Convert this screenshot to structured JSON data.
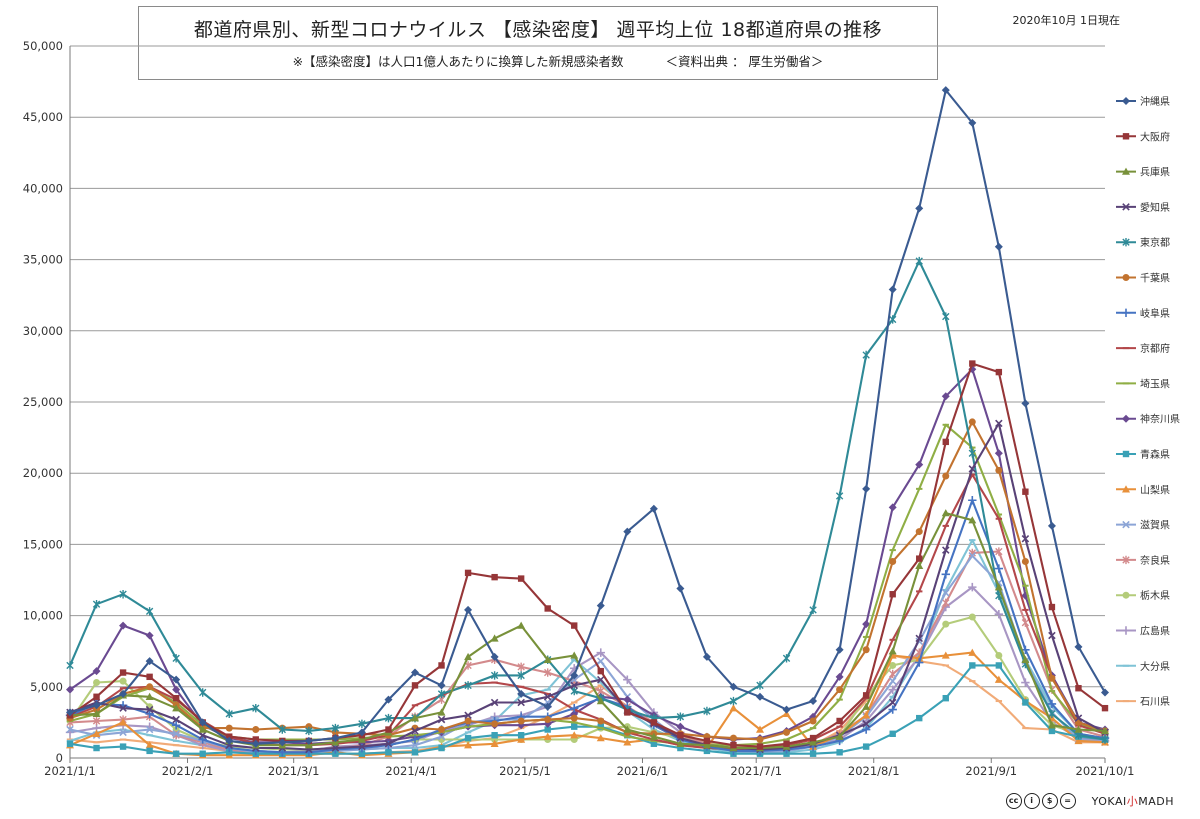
{
  "header": {
    "title": "都道府県別、新型コロナウイルス 【感染密度】 週平均上位 18都道府県の推移",
    "subtitle_left": "※【感染密度】は人口1億人あたりに換算した新規感染者数",
    "subtitle_right": "＜資料出典 ： 厚生労働省＞",
    "as_of": "2020年10月 1日現在"
  },
  "footer": {
    "license_icons": [
      "cc",
      "by",
      "nc",
      "nd"
    ],
    "brand_prefix": "YOKAI",
    "brand_mid": "小",
    "brand_suffix": "MADH"
  },
  "chart_data": {
    "type": "line",
    "title": "都道府県別、新型コロナウイルス 【感染密度】 週平均上位 18都道府県の推移",
    "xlabel": "",
    "ylabel": "",
    "ylim": [
      0,
      50000
    ],
    "yticks": [
      0,
      5000,
      10000,
      15000,
      20000,
      25000,
      30000,
      35000,
      40000,
      45000,
      50000
    ],
    "ytick_labels": [
      "0",
      "5,000",
      "10,000",
      "15,000",
      "20,000",
      "25,000",
      "30,000",
      "35,000",
      "40,000",
      "45,000",
      "50,000"
    ],
    "x_ticks": [
      {
        "date": "2021-01-01",
        "label": "2021/1/1"
      },
      {
        "date": "2021-02-01",
        "label": "2021/2/1"
      },
      {
        "date": "2021-03-01",
        "label": "2021/3/1"
      },
      {
        "date": "2021-04-01",
        "label": "2021/4/1"
      },
      {
        "date": "2021-05-01",
        "label": "2021/5/1"
      },
      {
        "date": "2021-06-01",
        "label": "2021/6/1"
      },
      {
        "date": "2021-07-01",
        "label": "2021/7/1"
      },
      {
        "date": "2021-08-01",
        "label": "2021/8/1"
      },
      {
        "date": "2021-09-01",
        "label": "2021/9/1"
      },
      {
        "date": "2021-10-01",
        "label": "2021/10/1"
      }
    ],
    "xlim": [
      "2021-01-01",
      "2021-10-01"
    ],
    "x": [
      "2021-01-01",
      "2021-01-08",
      "2021-01-15",
      "2021-01-22",
      "2021-01-29",
      "2021-02-05",
      "2021-02-12",
      "2021-02-19",
      "2021-02-26",
      "2021-03-05",
      "2021-03-12",
      "2021-03-19",
      "2021-03-26",
      "2021-04-02",
      "2021-04-09",
      "2021-04-16",
      "2021-04-23",
      "2021-04-30",
      "2021-05-07",
      "2021-05-14",
      "2021-05-21",
      "2021-05-28",
      "2021-06-04",
      "2021-06-11",
      "2021-06-18",
      "2021-06-25",
      "2021-07-02",
      "2021-07-09",
      "2021-07-16",
      "2021-07-23",
      "2021-07-30",
      "2021-08-06",
      "2021-08-13",
      "2021-08-20",
      "2021-08-27",
      "2021-09-03",
      "2021-09-10",
      "2021-09-17",
      "2021-09-24",
      "2021-10-01"
    ],
    "grid": "horizontal",
    "legend_position": "right",
    "series": [
      {
        "name": "沖縄県",
        "color": "#3a5b91",
        "marker": "diamond",
        "values": [
          3200,
          3700,
          4500,
          6800,
          5500,
          2500,
          1200,
          1000,
          1100,
          1200,
          1400,
          1800,
          4100,
          6000,
          5100,
          10400,
          7100,
          4500,
          3600,
          5800,
          10700,
          15900,
          17500,
          11900,
          7100,
          5000,
          4300,
          3400,
          4000,
          7600,
          18900,
          32900,
          38600,
          46900,
          44600,
          35900,
          24900,
          16300,
          7800,
          4600
        ]
      },
      {
        "name": "大阪府",
        "color": "#963638",
        "marker": "square",
        "values": [
          3000,
          4300,
          6000,
          5700,
          4200,
          2500,
          1500,
          1300,
          1200,
          1200,
          1400,
          1600,
          2000,
          5100,
          6500,
          13000,
          12700,
          12600,
          10500,
          9300,
          6100,
          3200,
          2500,
          1600,
          1200,
          900,
          800,
          1000,
          1400,
          2600,
          4400,
          11500,
          14000,
          22200,
          27700,
          27100,
          18700,
          10600,
          4900,
          3500
        ]
      },
      {
        "name": "兵庫県",
        "color": "#78913a",
        "marker": "triangle",
        "values": [
          3000,
          3100,
          4400,
          4300,
          3500,
          2000,
          1200,
          900,
          900,
          900,
          1100,
          1300,
          1800,
          2800,
          3200,
          7100,
          8400,
          9300,
          6900,
          7200,
          4000,
          2000,
          1500,
          1000,
          900,
          700,
          700,
          800,
          1100,
          1500,
          3600,
          7500,
          13500,
          17200,
          16700,
          12000,
          6900,
          2300,
          2000,
          1900
        ]
      },
      {
        "name": "愛知県",
        "color": "#594277",
        "marker": "x",
        "values": [
          3200,
          3900,
          3500,
          3400,
          2700,
          1600,
          900,
          700,
          700,
          600,
          700,
          800,
          1000,
          1900,
          2700,
          3000,
          3900,
          3900,
          4300,
          5100,
          5500,
          3300,
          2400,
          1400,
          900,
          700,
          600,
          700,
          1000,
          1600,
          2400,
          3900,
          8400,
          14600,
          20300,
          23500,
          15400,
          8600,
          2800,
          1800
        ]
      },
      {
        "name": "東京都",
        "color": "#2f8a97",
        "marker": "star",
        "values": [
          6500,
          10800,
          11500,
          10300,
          7000,
          4600,
          3100,
          3500,
          2000,
          1900,
          2100,
          2400,
          2800,
          2800,
          4500,
          5100,
          5800,
          5800,
          6900,
          4700,
          4200,
          3400,
          2800,
          2900,
          3300,
          4000,
          5100,
          7000,
          10400,
          18400,
          28300,
          30800,
          34900,
          31000,
          21400,
          11400,
          6600,
          3100,
          1600,
          1300
        ]
      },
      {
        "name": "千葉県",
        "color": "#c2732f",
        "marker": "circle",
        "values": [
          2800,
          3400,
          4500,
          5000,
          3700,
          2100,
          2100,
          2000,
          2100,
          2200,
          1800,
          1700,
          1600,
          2100,
          2000,
          2600,
          2400,
          2600,
          2700,
          2800,
          2600,
          1800,
          1700,
          1700,
          1500,
          1400,
          1300,
          1800,
          2600,
          4800,
          7600,
          13800,
          15900,
          19800,
          23600,
          20200,
          13800,
          5600,
          2500,
          1900
        ]
      },
      {
        "name": "岐阜県",
        "color": "#4573c2",
        "marker": "plus",
        "values": [
          3000,
          3800,
          3700,
          3100,
          2300,
          1300,
          700,
          500,
          400,
          400,
          600,
          700,
          900,
          1300,
          2000,
          2500,
          2600,
          2900,
          2900,
          3500,
          4200,
          3600,
          2300,
          1300,
          800,
          500,
          500,
          600,
          800,
          1200,
          2000,
          3400,
          6700,
          12900,
          18100,
          13300,
          7600,
          3800,
          1700,
          1400
        ]
      },
      {
        "name": "京都府",
        "color": "#b3474a",
        "marker": "line",
        "values": [
          2900,
          3600,
          4900,
          5000,
          4100,
          2600,
          1500,
          1000,
          900,
          900,
          1000,
          1200,
          1600,
          3700,
          4400,
          5200,
          5300,
          5000,
          4500,
          3400,
          2700,
          1800,
          1300,
          900,
          700,
          600,
          700,
          900,
          1300,
          2200,
          4200,
          8300,
          11700,
          16300,
          19900,
          16800,
          10400,
          5700,
          2300,
          1700
        ]
      },
      {
        "name": "埼玉県",
        "color": "#8fae45",
        "marker": "line",
        "values": [
          2600,
          3100,
          4300,
          4900,
          3900,
          2300,
          1500,
          1300,
          1300,
          1300,
          1300,
          1400,
          1500,
          1600,
          1800,
          2200,
          2400,
          2600,
          2700,
          2500,
          2100,
          1500,
          1200,
          1000,
          900,
          900,
          1000,
          1300,
          2100,
          4100,
          8500,
          14600,
          18900,
          23400,
          21800,
          17100,
          12100,
          4700,
          2400,
          1800
        ]
      },
      {
        "name": "神奈川県",
        "color": "#6a4a91",
        "marker": "diamond",
        "values": [
          4800,
          6100,
          9300,
          8600,
          4800,
          2300,
          1400,
          1100,
          1100,
          1000,
          1100,
          1100,
          1200,
          1500,
          1800,
          2200,
          2300,
          2300,
          2400,
          3100,
          4300,
          4100,
          3000,
          2200,
          1500,
          1300,
          1400,
          1900,
          2900,
          5700,
          9400,
          17600,
          20600,
          25400,
          27300,
          21400,
          11400,
          5800,
          2500,
          2000
        ]
      },
      {
        "name": "青森県",
        "color": "#3aa1b6",
        "marker": "square",
        "values": [
          1000,
          700,
          800,
          500,
          300,
          300,
          400,
          300,
          300,
          300,
          300,
          300,
          400,
          400,
          700,
          1400,
          1600,
          1600,
          2000,
          2200,
          2200,
          1600,
          1000,
          700,
          500,
          300,
          300,
          300,
          300,
          400,
          800,
          1700,
          2800,
          4200,
          6500,
          6500,
          3900,
          1900,
          1500,
          1300
        ]
      },
      {
        "name": "山梨県",
        "color": "#e8903a",
        "marker": "triangle",
        "values": [
          900,
          1700,
          2500,
          900,
          300,
          200,
          200,
          200,
          200,
          200,
          400,
          200,
          300,
          400,
          800,
          900,
          1000,
          1300,
          1500,
          1600,
          1400,
          1100,
          1300,
          900,
          700,
          3500,
          2000,
          3100,
          800,
          1600,
          3000,
          7200,
          7000,
          7200,
          7400,
          5500,
          4000,
          2800,
          1200,
          1100
        ]
      },
      {
        "name": "滋賀県",
        "color": "#8ca5d6",
        "marker": "x",
        "values": [
          2000,
          1600,
          1800,
          2000,
          1700,
          1200,
          700,
          400,
          300,
          300,
          500,
          600,
          700,
          900,
          1500,
          2500,
          2700,
          2700,
          3900,
          5500,
          6800,
          4300,
          2700,
          1300,
          800,
          500,
          400,
          500,
          800,
          1500,
          2900,
          5400,
          8200,
          11600,
          14200,
          12300,
          6800,
          3200,
          1300,
          1100
        ]
      },
      {
        "name": "奈良県",
        "color": "#d38a8c",
        "marker": "star",
        "values": [
          2500,
          2600,
          2700,
          2900,
          1600,
          1100,
          600,
          400,
          400,
          400,
          600,
          900,
          1500,
          2900,
          4100,
          6500,
          6900,
          6400,
          6000,
          5400,
          4700,
          3600,
          2500,
          1600,
          1000,
          700,
          600,
          700,
          1000,
          1700,
          3000,
          5900,
          7400,
          10900,
          14400,
          14500,
          9500,
          4800,
          2000,
          1500
        ]
      },
      {
        "name": "栃木県",
        "color": "#b4cc7a",
        "marker": "circle",
        "values": [
          2600,
          5300,
          5400,
          3600,
          2000,
          1200,
          800,
          700,
          600,
          600,
          700,
          800,
          900,
          1300,
          1300,
          1300,
          1300,
          1300,
          1300,
          1300,
          2100,
          2200,
          1800,
          1400,
          1100,
          800,
          700,
          800,
          1000,
          1500,
          4300,
          6500,
          6900,
          9400,
          9900,
          7200,
          4100,
          2300,
          1700,
          1400
        ]
      },
      {
        "name": "広島県",
        "color": "#a896c4",
        "marker": "plus",
        "values": [
          1800,
          2100,
          2300,
          2200,
          1600,
          900,
          500,
          400,
          400,
          500,
          800,
          900,
          1000,
          1200,
          1900,
          2300,
          2900,
          3000,
          3600,
          6300,
          7400,
          5500,
          3200,
          1800,
          1000,
          600,
          500,
          600,
          800,
          1300,
          2600,
          4800,
          7100,
          10600,
          12000,
          10100,
          5300,
          2500,
          1400,
          1200
        ]
      },
      {
        "name": "大分県",
        "color": "#7fc3d6",
        "marker": "line",
        "values": [
          1200,
          1800,
          2000,
          1600,
          1200,
          900,
          600,
          500,
          400,
          400,
          500,
          600,
          700,
          700,
          900,
          1800,
          2600,
          4400,
          4800,
          6900,
          5300,
          3300,
          2000,
          1200,
          700,
          400,
          300,
          400,
          600,
          1100,
          2100,
          4300,
          7200,
          11800,
          15300,
          11600,
          6900,
          3600,
          1700,
          1300
        ]
      },
      {
        "name": "石川県",
        "color": "#f1ab78",
        "marker": "line",
        "values": [
          1300,
          1100,
          1300,
          1100,
          900,
          700,
          500,
          500,
          400,
          300,
          300,
          300,
          400,
          500,
          800,
          1200,
          1400,
          2100,
          2900,
          3900,
          5100,
          3600,
          2300,
          1300,
          800,
          500,
          400,
          500,
          900,
          1900,
          4000,
          7200,
          6800,
          6500,
          5400,
          4000,
          2100,
          2000,
          1100,
          1100
        ]
      }
    ]
  }
}
